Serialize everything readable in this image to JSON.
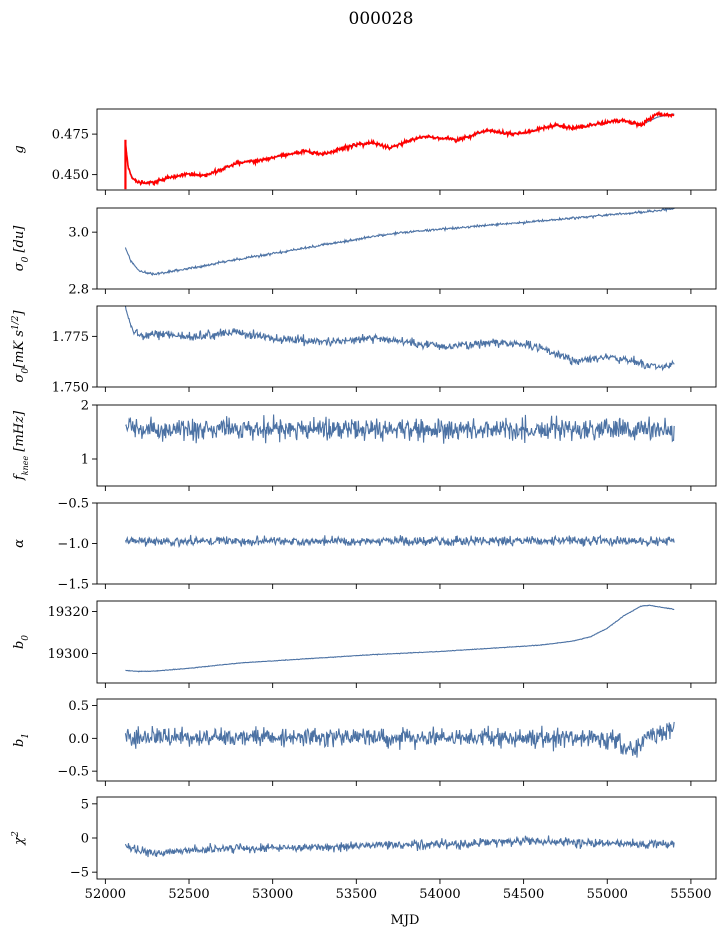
{
  "figure": {
    "title": "000028",
    "xlabel": "MJD"
  },
  "colors": {
    "series": "#4c72a4",
    "overlay": "#ff0000",
    "frame": "#000000"
  },
  "chart_data": [
    {
      "type": "line",
      "ylabel_html": "g",
      "xlim": [
        51950,
        55650
      ],
      "ylim": [
        0.4405,
        0.4905
      ],
      "xticks": [
        52000,
        52500,
        53000,
        53500,
        54000,
        54500,
        55000,
        55500
      ],
      "yticks": [
        0.45,
        0.475
      ],
      "ytick_labels": [
        "0.450",
        "0.475"
      ],
      "series": [
        {
          "color_key": "series",
          "x": [
            52120,
            52135,
            52160,
            52200,
            52250,
            52300,
            52400,
            52500,
            52600,
            52700,
            52800,
            52900,
            53000,
            53100,
            53200,
            53300,
            53400,
            53500,
            53600,
            53700,
            53800,
            53900,
            54000,
            54100,
            54200,
            54300,
            54400,
            54500,
            54600,
            54700,
            54800,
            54900,
            55000,
            55100,
            55200,
            55300,
            55400
          ],
          "y": [
            0.4705,
            0.455,
            0.448,
            0.445,
            0.4445,
            0.4455,
            0.4485,
            0.4505,
            0.4495,
            0.4535,
            0.4575,
            0.4585,
            0.4605,
            0.4625,
            0.4645,
            0.4625,
            0.4655,
            0.4685,
            0.4695,
            0.4665,
            0.4705,
            0.4735,
            0.4725,
            0.4715,
            0.4745,
            0.4775,
            0.4755,
            0.4755,
            0.4785,
            0.4805,
            0.4785,
            0.4805,
            0.4825,
            0.4835,
            0.4805,
            0.4855,
            0.4875
          ]
        },
        {
          "color_key": "overlay",
          "noise": 0.0012,
          "spike": {
            "x": 52120,
            "y0": 0.441,
            "y1": 0.4715
          },
          "x": [
            52120,
            52135,
            52160,
            52200,
            52250,
            52300,
            52400,
            52500,
            52600,
            52700,
            52800,
            52900,
            53000,
            53100,
            53200,
            53300,
            53400,
            53500,
            53600,
            53700,
            53800,
            53900,
            54000,
            54100,
            54200,
            54300,
            54400,
            54500,
            54600,
            54700,
            54800,
            54900,
            55000,
            55100,
            55200,
            55300,
            55400
          ],
          "y": [
            0.4705,
            0.455,
            0.448,
            0.445,
            0.4445,
            0.4455,
            0.4485,
            0.4505,
            0.4495,
            0.4535,
            0.4575,
            0.4585,
            0.4605,
            0.4625,
            0.4645,
            0.4625,
            0.4655,
            0.4685,
            0.4695,
            0.4665,
            0.4705,
            0.4735,
            0.4725,
            0.4715,
            0.4745,
            0.4775,
            0.4755,
            0.4755,
            0.4785,
            0.4805,
            0.4785,
            0.4805,
            0.4825,
            0.4835,
            0.4805,
            0.4875,
            0.4865
          ]
        }
      ]
    },
    {
      "type": "line",
      "ylabel_html": "σ<tspan baseline-shift='sub' font-size='9'>0</tspan> [du]",
      "xlim": [
        51950,
        55650
      ],
      "ylim": [
        2.8,
        3.085
      ],
      "xticks": [
        52000,
        52500,
        53000,
        53500,
        54000,
        54500,
        55000,
        55500
      ],
      "yticks": [
        2.8,
        3.0
      ],
      "ytick_labels": [
        "2.8",
        "3.0"
      ],
      "series": [
        {
          "color_key": "series",
          "noise": 0.004,
          "x": [
            52120,
            52150,
            52200,
            52250,
            52300,
            52400,
            52500,
            52600,
            52700,
            52800,
            52900,
            53000,
            53200,
            53400,
            53600,
            53800,
            54000,
            54200,
            54400,
            54600,
            54800,
            55000,
            55200,
            55400
          ],
          "y": [
            2.945,
            2.9,
            2.865,
            2.855,
            2.852,
            2.862,
            2.873,
            2.882,
            2.895,
            2.905,
            2.915,
            2.925,
            2.945,
            2.965,
            2.985,
            3.0,
            3.01,
            3.02,
            3.03,
            3.04,
            3.05,
            3.06,
            3.07,
            3.083
          ]
        }
      ]
    },
    {
      "type": "line",
      "ylabel_html": "σ<tspan baseline-shift='sub' font-size='9'>0</tspan>[mK s<tspan baseline-shift='super' font-size='9'>1/2</tspan>]",
      "xlim": [
        51950,
        55650
      ],
      "ylim": [
        1.75,
        1.79
      ],
      "xticks": [
        52000,
        52500,
        53000,
        53500,
        54000,
        54500,
        55000,
        55500
      ],
      "yticks": [
        1.75,
        1.775
      ],
      "ytick_labels": [
        "1.750",
        "1.775"
      ],
      "series": [
        {
          "color_key": "series",
          "noise": 0.0022,
          "x": [
            52120,
            52150,
            52200,
            52300,
            52500,
            52800,
            53000,
            53300,
            53600,
            54000,
            54300,
            54600,
            54800,
            55000,
            55200,
            55300,
            55400
          ],
          "y": [
            1.789,
            1.78,
            1.775,
            1.776,
            1.775,
            1.777,
            1.774,
            1.772,
            1.774,
            1.77,
            1.772,
            1.77,
            1.763,
            1.765,
            1.762,
            1.759,
            1.762
          ]
        }
      ]
    },
    {
      "type": "line",
      "ylabel_html": "f<tspan baseline-shift='sub' font-size='8'>knee</tspan> [mHz]",
      "xlim": [
        51950,
        55650
      ],
      "ylim": [
        0.5,
        2.0
      ],
      "xticks": [
        52000,
        52500,
        53000,
        53500,
        54000,
        54500,
        55000,
        55500
      ],
      "yticks": [
        1,
        2
      ],
      "ytick_labels": [
        "1",
        "2"
      ],
      "series": [
        {
          "color_key": "series",
          "noise": 0.2,
          "clip": [
            0.95,
            1.95
          ],
          "x": [
            52120,
            55400
          ],
          "y": [
            1.55,
            1.55
          ]
        }
      ]
    },
    {
      "type": "line",
      "ylabel_html": "α",
      "xlim": [
        51950,
        55650
      ],
      "ylim": [
        -1.5,
        -0.5
      ],
      "xticks": [
        52000,
        52500,
        53000,
        53500,
        54000,
        54500,
        55000,
        55500
      ],
      "yticks": [
        -1.5,
        -1.0,
        -0.5
      ],
      "ytick_labels": [
        "−1.5",
        "−1.0",
        "−0.5"
      ],
      "series": [
        {
          "color_key": "series",
          "noise": 0.055,
          "clip": [
            -1.18,
            -0.82
          ],
          "x": [
            52120,
            55400
          ],
          "y": [
            -0.97,
            -0.97
          ]
        }
      ]
    },
    {
      "type": "line",
      "ylabel_html": "b<tspan baseline-shift='sub' font-size='9'>0</tspan>",
      "xlim": [
        51950,
        55650
      ],
      "ylim": [
        19286,
        19325
      ],
      "xticks": [
        52000,
        52500,
        53000,
        53500,
        54000,
        54500,
        55000,
        55500
      ],
      "yticks": [
        19300,
        19320
      ],
      "ytick_labels": [
        "19300",
        "19320"
      ],
      "series": [
        {
          "color_key": "series",
          "noise": 0.15,
          "x": [
            52120,
            52200,
            52300,
            52500,
            52800,
            53000,
            53300,
            53600,
            54000,
            54300,
            54600,
            54800,
            54900,
            55000,
            55100,
            55200,
            55250,
            55300,
            55400
          ],
          "y": [
            19292,
            19291.5,
            19291.7,
            19293,
            19295.5,
            19296.5,
            19298,
            19299.5,
            19301,
            19302.5,
            19304,
            19306,
            19308,
            19312,
            19318,
            19322.5,
            19323,
            19322.3,
            19321
          ]
        }
      ]
    },
    {
      "type": "line",
      "ylabel_html": "b<tspan baseline-shift='sub' font-size='9'>1</tspan>",
      "xlim": [
        51950,
        55650
      ],
      "ylim": [
        -0.65,
        0.6
      ],
      "xticks": [
        52000,
        52500,
        53000,
        53500,
        54000,
        54500,
        55000,
        55500
      ],
      "yticks": [
        -0.5,
        0.0,
        0.5
      ],
      "ytick_labels": [
        "−0.5",
        "0.0",
        "0.5"
      ],
      "series": [
        {
          "color_key": "series",
          "noise": 0.14,
          "clip": [
            -0.58,
            0.55
          ],
          "x": [
            52120,
            55000,
            55150,
            55250,
            55400
          ],
          "y": [
            0.02,
            0.0,
            -0.2,
            0.05,
            0.15
          ]
        }
      ]
    },
    {
      "type": "line",
      "ylabel_html": "χ<tspan baseline-shift='super' font-size='9'>2</tspan>",
      "xlim": [
        51950,
        55650
      ],
      "ylim": [
        -6,
        6
      ],
      "xticks": [
        52000,
        52500,
        53000,
        53500,
        54000,
        54500,
        55000,
        55500
      ],
      "xtick_labels": [
        "52000",
        "52500",
        "53000",
        "53500",
        "54000",
        "54500",
        "55000",
        "55500"
      ],
      "yticks": [
        -5,
        0,
        5
      ],
      "ytick_labels": [
        "−5",
        "0",
        "5"
      ],
      "series": [
        {
          "color_key": "series",
          "noise": 0.65,
          "clip": [
            -4.2,
            1.9
          ],
          "x": [
            52120,
            52300,
            52600,
            53000,
            53500,
            54000,
            54500,
            55000,
            55400
          ],
          "y": [
            -1.2,
            -2.2,
            -1.6,
            -1.4,
            -1.2,
            -0.9,
            -0.5,
            -0.7,
            -1.0
          ]
        }
      ]
    }
  ]
}
